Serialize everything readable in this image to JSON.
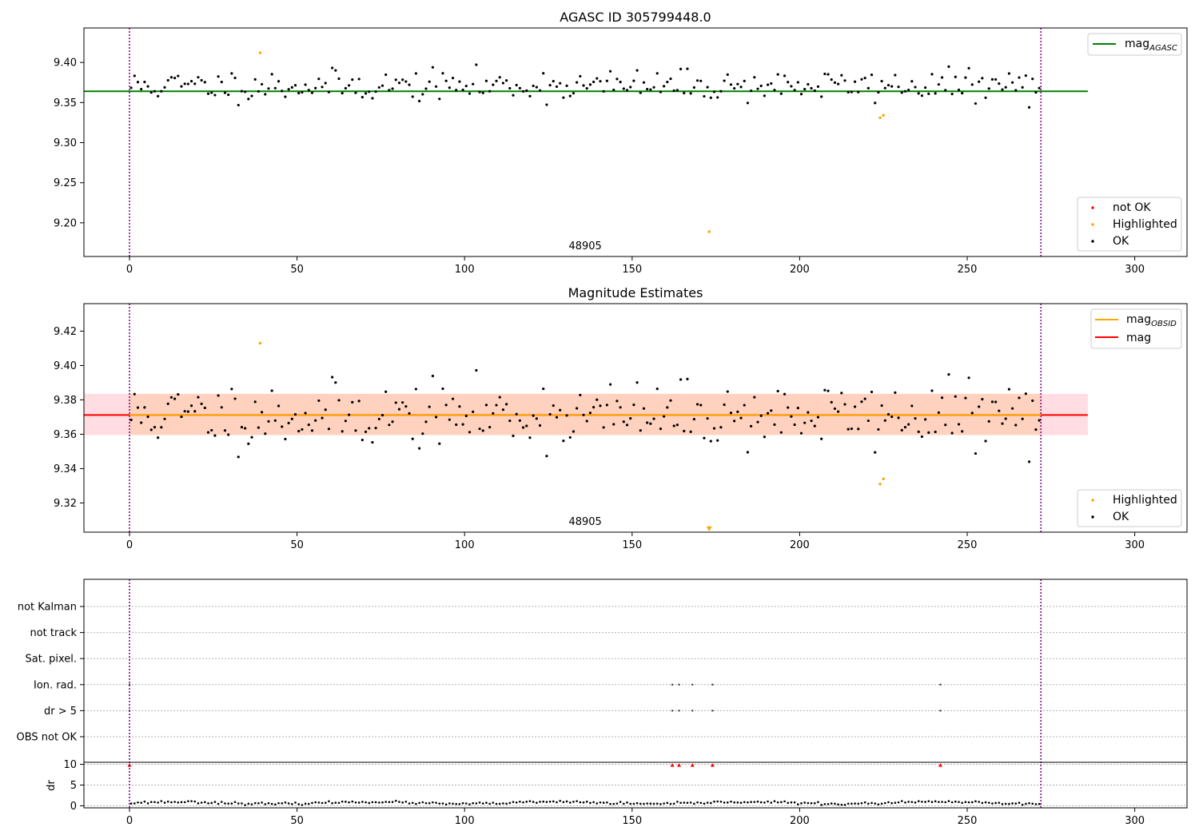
{
  "chart_data": [
    {
      "type": "scatter",
      "title": "AGASC ID 305799448.0",
      "xlim": [
        -13.6,
        315.6
      ],
      "ylim": [
        9.158,
        9.443
      ],
      "xticks": [
        0,
        50,
        100,
        150,
        200,
        250,
        300
      ],
      "yticks": [
        9.2,
        9.25,
        9.3,
        9.35,
        9.4
      ],
      "ytick_labels": [
        "9.20",
        "9.25",
        "9.30",
        "9.35",
        "9.40"
      ],
      "obsid_label": "48905",
      "obsid_label_x": 136,
      "vlines": [
        0,
        272
      ],
      "hline": {
        "name": "mag_AGASC",
        "value": 9.364,
        "x_range": [
          -13.6,
          286
        ],
        "color": "#008000"
      },
      "legend_top": {
        "items": [
          {
            "label": "mag",
            "sub": "AGASC",
            "color": "#008000"
          }
        ]
      },
      "legend_bottom": {
        "items": [
          {
            "label": "not OK",
            "color": "#ff0000"
          },
          {
            "label": "Highlighted",
            "color": "#ffa500"
          },
          {
            "label": "OK",
            "color": "#000000"
          }
        ]
      },
      "series": [
        {
          "name": "OK",
          "color": "#000000",
          "seed": 11,
          "n": 272,
          "center": 9.371,
          "spread": 0.012
        },
        {
          "name": "Highlighted",
          "color": "#ffa500",
          "points": [
            [
              39,
              9.412
            ],
            [
              224,
              9.331
            ],
            [
              225,
              9.334
            ],
            [
              173,
              9.189
            ]
          ]
        }
      ]
    },
    {
      "type": "scatter",
      "title": "Magnitude Estimates",
      "xlim": [
        -13.6,
        315.6
      ],
      "ylim": [
        9.303,
        9.436
      ],
      "xticks": [
        0,
        50,
        100,
        150,
        200,
        250,
        300
      ],
      "yticks": [
        9.32,
        9.34,
        9.36,
        9.38,
        9.4,
        9.42
      ],
      "ytick_labels": [
        "9.32",
        "9.34",
        "9.36",
        "9.38",
        "9.40",
        "9.42"
      ],
      "obsid_label": "48905",
      "obsid_label_x": 136,
      "vlines": [
        0,
        272
      ],
      "band_outer": {
        "x_range": [
          -13.6,
          286
        ],
        "y_range": [
          9.3595,
          9.3835
        ],
        "color": "#ffdde3"
      },
      "band_inner": {
        "x_range": [
          0,
          272
        ],
        "y_range": [
          9.3595,
          9.3835
        ],
        "color": "#ffd2bf"
      },
      "mag_line": {
        "name": "mag",
        "value": 9.3712,
        "x_range": [
          -13.6,
          286
        ],
        "color": "#ff0000"
      },
      "mag_obsid_line": {
        "name": "mag_OBSID",
        "value": 9.3712,
        "x_range": [
          0,
          272
        ],
        "color": "#ffa500"
      },
      "legend_top": {
        "items": [
          {
            "label": "mag",
            "sub": "OBSID",
            "color": "#ffa500"
          },
          {
            "label": "mag",
            "sub": "",
            "color": "#ff0000"
          }
        ]
      },
      "legend_bottom": {
        "items": [
          {
            "label": "Highlighted",
            "color": "#ffa500"
          },
          {
            "label": "OK",
            "color": "#000000"
          }
        ]
      },
      "series": [
        {
          "name": "OK",
          "color": "#000000",
          "seed": 11,
          "n": 272,
          "center": 9.371,
          "spread": 0.012
        },
        {
          "name": "Highlighted",
          "color": "#ffa500",
          "points": [
            [
              39,
              9.413
            ],
            [
              224,
              9.331
            ],
            [
              225,
              9.334
            ]
          ]
        },
        {
          "name": "Highlighted (off-scale)",
          "color": "#ffa500",
          "marker": "triangle-down",
          "points": [
            [
              173,
              9.305
            ]
          ]
        }
      ]
    },
    {
      "type": "scatter",
      "title": "",
      "xlim": [
        -13.6,
        315.6
      ],
      "xticks": [
        0,
        50,
        100,
        150,
        200,
        250,
        300
      ],
      "flag_rows": [
        "not Kalman",
        "not track",
        "Sat. pixel.",
        "Ion. rad.",
        "dr > 5",
        "OBS not OK"
      ],
      "flags": {
        "Ion. rad.": [
          0,
          162,
          164,
          168,
          174,
          242
        ],
        "dr > 5": [
          0,
          162,
          164,
          168,
          174,
          242
        ]
      },
      "dr": {
        "ylabel": "dr",
        "ylim": [
          -0.5,
          10.5
        ],
        "yticks": [
          0,
          5,
          10
        ],
        "ytick_labels": [
          "0",
          "5",
          "10"
        ],
        "red_markers_x": [
          0,
          162,
          164,
          168,
          174,
          242
        ],
        "red_marker_value": 9.8,
        "seed": 23,
        "n": 272,
        "base": 0.7,
        "spread": 0.35
      },
      "vlines": [
        0,
        272
      ]
    }
  ]
}
